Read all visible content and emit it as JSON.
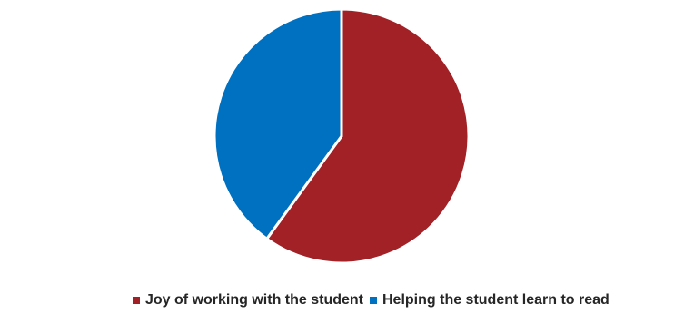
{
  "chart_data": {
    "type": "pie",
    "title": "",
    "categories": [
      "Joy of working with the student",
      "Helping the student learn to read"
    ],
    "values": [
      60,
      40
    ],
    "colors": [
      "#A12126",
      "#0070C0"
    ],
    "start_angle_deg": 0,
    "direction": "clockwise",
    "legend_position": "bottom",
    "slice_border_color": "#ffffff"
  },
  "legend": {
    "items": [
      {
        "label": "Joy of working with the student",
        "color": "#A12126"
      },
      {
        "label": "Helping the student learn to read",
        "color": "#0070C0"
      }
    ]
  }
}
